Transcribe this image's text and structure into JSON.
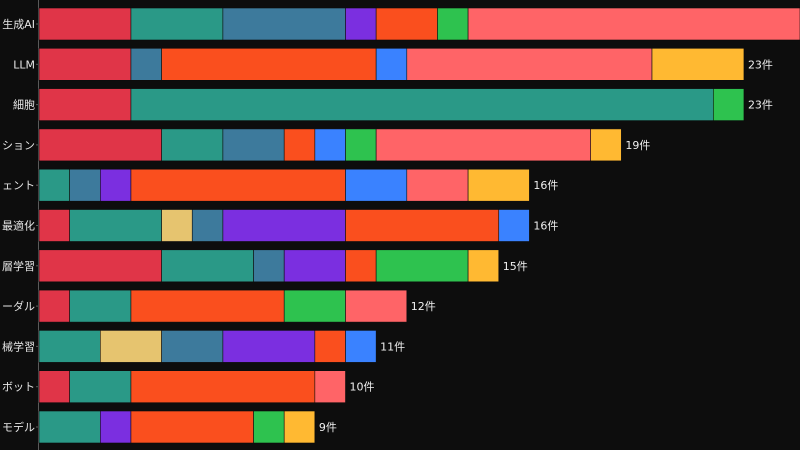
{
  "chart_data": {
    "type": "bar",
    "orientation": "horizontal",
    "stacked": true,
    "categories": [
      "生成AI",
      "LLM",
      "細胞",
      "ション",
      "ェント",
      "最適化",
      "層学習",
      "ーダル",
      "械学習",
      "ボット",
      "モデル"
    ],
    "segment_colors": [
      "#e03548",
      "#2a9987",
      "#3d7a9c",
      "#7b2fe0",
      "#fa4f1e",
      "#2ec24f",
      "#ff6467",
      "#ffb932",
      "#3a82ff",
      "#e6c46f"
    ],
    "bars": [
      {
        "segments": [
          {
            "c": 0,
            "v": 3
          },
          {
            "c": 1,
            "v": 3
          },
          {
            "c": 2,
            "v": 4
          },
          {
            "c": 3,
            "v": 1
          },
          {
            "c": 4,
            "v": 2
          },
          {
            "c": 5,
            "v": 1
          },
          {
            "c": 6,
            "v": 11
          }
        ],
        "total_label": ""
      },
      {
        "segments": [
          {
            "c": 0,
            "v": 3
          },
          {
            "c": 2,
            "v": 1
          },
          {
            "c": 4,
            "v": 7
          },
          {
            "c": 8,
            "v": 1
          },
          {
            "c": 6,
            "v": 8
          },
          {
            "c": 7,
            "v": 3
          }
        ],
        "total_label": "23件"
      },
      {
        "segments": [
          {
            "c": 0,
            "v": 3
          },
          {
            "c": 1,
            "v": 19
          },
          {
            "c": 5,
            "v": 1
          }
        ],
        "total_label": "23件"
      },
      {
        "segments": [
          {
            "c": 0,
            "v": 4
          },
          {
            "c": 1,
            "v": 2
          },
          {
            "c": 2,
            "v": 2
          },
          {
            "c": 4,
            "v": 1
          },
          {
            "c": 8,
            "v": 1
          },
          {
            "c": 5,
            "v": 1
          },
          {
            "c": 6,
            "v": 7
          },
          {
            "c": 7,
            "v": 1
          }
        ],
        "total_label": "19件"
      },
      {
        "segments": [
          {
            "c": 1,
            "v": 1
          },
          {
            "c": 2,
            "v": 1
          },
          {
            "c": 3,
            "v": 1
          },
          {
            "c": 4,
            "v": 7
          },
          {
            "c": 8,
            "v": 2
          },
          {
            "c": 6,
            "v": 2
          },
          {
            "c": 7,
            "v": 2
          }
        ],
        "total_label": "16件"
      },
      {
        "segments": [
          {
            "c": 0,
            "v": 1
          },
          {
            "c": 1,
            "v": 3
          },
          {
            "c": 9,
            "v": 1
          },
          {
            "c": 2,
            "v": 1
          },
          {
            "c": 3,
            "v": 4
          },
          {
            "c": 4,
            "v": 5
          },
          {
            "c": 8,
            "v": 1
          }
        ],
        "total_label": "16件"
      },
      {
        "segments": [
          {
            "c": 0,
            "v": 4
          },
          {
            "c": 1,
            "v": 3
          },
          {
            "c": 2,
            "v": 1
          },
          {
            "c": 3,
            "v": 2
          },
          {
            "c": 4,
            "v": 1
          },
          {
            "c": 5,
            "v": 3
          },
          {
            "c": 7,
            "v": 1
          }
        ],
        "total_label": "15件"
      },
      {
        "segments": [
          {
            "c": 0,
            "v": 1
          },
          {
            "c": 1,
            "v": 2
          },
          {
            "c": 4,
            "v": 5
          },
          {
            "c": 5,
            "v": 2
          },
          {
            "c": 6,
            "v": 2
          }
        ],
        "total_label": "12件"
      },
      {
        "segments": [
          {
            "c": 1,
            "v": 2
          },
          {
            "c": 9,
            "v": 2
          },
          {
            "c": 2,
            "v": 2
          },
          {
            "c": 3,
            "v": 3
          },
          {
            "c": 4,
            "v": 1
          },
          {
            "c": 8,
            "v": 1
          }
        ],
        "total_label": "11件"
      },
      {
        "segments": [
          {
            "c": 0,
            "v": 1
          },
          {
            "c": 1,
            "v": 2
          },
          {
            "c": 4,
            "v": 6
          },
          {
            "c": 6,
            "v": 1
          }
        ],
        "total_label": "10件"
      },
      {
        "segments": [
          {
            "c": 1,
            "v": 2
          },
          {
            "c": 3,
            "v": 1
          },
          {
            "c": 4,
            "v": 4
          },
          {
            "c": 5,
            "v": 1
          },
          {
            "c": 7,
            "v": 1
          }
        ],
        "total_label": "9件"
      }
    ]
  }
}
